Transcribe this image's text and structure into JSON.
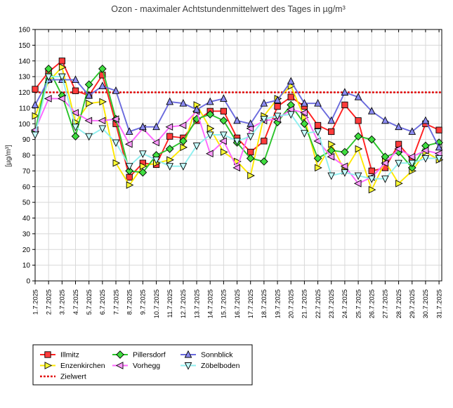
{
  "title": "Ozon -  maximaler Achtstundenmittelwert des Tages in µg/m³",
  "chart_data": {
    "type": "line",
    "title": "Ozon -  maximaler Achtstundenmittelwert des Tages in µg/m³",
    "xlabel": "",
    "ylabel": "[µg/m³]",
    "ylim": [
      0,
      160
    ],
    "ytick_step": 10,
    "grid": true,
    "legend_position": "bottom-left",
    "ytick_labels": [
      "0",
      "10",
      "20",
      "30",
      "40",
      "50",
      "60",
      "70",
      "80",
      "90",
      "100",
      "110",
      "120",
      "130",
      "140",
      "150",
      "160"
    ],
    "categories": [
      "1.7.2025",
      "2.7.2025",
      "3.7.2025",
      "4.7.2025",
      "5.7.2025",
      "6.7.2025",
      "7.7.2025",
      "8.7.2025",
      "9.7.2025",
      "10.7.2025",
      "11.7.2025",
      "12.7.2025",
      "13.7.2025",
      "14.7.2025",
      "15.7.2025",
      "16.7.2025",
      "17.7.2025",
      "18.7.2025",
      "19.7.2025",
      "20.7.2025",
      "21.7.2025",
      "22.7.2025",
      "23.7.2025",
      "24.7.2025",
      "25.7.2025",
      "26.7.2025",
      "27.7.2025",
      "28.7.2025",
      "29.7.2025",
      "30.7.2025",
      "31.7.2025"
    ],
    "target_line": {
      "name": "Zielwert",
      "value": 120,
      "color": "#e00000",
      "style": "dotted"
    },
    "series": [
      {
        "name": "Illmitz",
        "marker": "square",
        "color": "#ff2020",
        "fill": "#ff3b3b",
        "values": [
          122,
          133,
          140,
          121,
          118,
          131,
          100,
          66,
          75,
          74,
          92,
          91,
          102,
          108,
          108,
          91,
          82,
          89,
          111,
          117,
          111,
          99,
          95,
          112,
          102,
          70,
          72,
          87,
          77,
          100,
          96
        ]
      },
      {
        "name": "Enzenkirchen",
        "marker": "triangle-right",
        "color": "#ffe800",
        "fill": "#ffff33",
        "values": [
          105,
          127,
          136,
          101,
          113,
          114,
          75,
          61,
          73,
          75,
          77,
          85,
          112,
          97,
          82,
          76,
          67,
          105,
          116,
          124,
          104,
          72,
          87,
          70,
          84,
          58,
          76,
          62,
          70,
          82,
          77
        ]
      },
      {
        "name": "Pillersdorf",
        "marker": "diamond",
        "color": "#2bc42b",
        "fill": "#3fde3f",
        "values": [
          95,
          135,
          118,
          92,
          125,
          135,
          103,
          70,
          69,
          80,
          84,
          89,
          103,
          106,
          102,
          88,
          78,
          76,
          101,
          112,
          100,
          78,
          83,
          82,
          92,
          90,
          79,
          82,
          72,
          86,
          88
        ]
      },
      {
        "name": "Vorhegg",
        "marker": "triangle-left",
        "color": "#ff66ff",
        "fill": "#ff9bff",
        "values": [
          96,
          116,
          116,
          107,
          102,
          102,
          103,
          87,
          97,
          88,
          98,
          99,
          108,
          81,
          89,
          72,
          97,
          102,
          103,
          109,
          107,
          89,
          79,
          73,
          62,
          66,
          75,
          84,
          79,
          83,
          81
        ]
      },
      {
        "name": "Sonnblick",
        "marker": "triangle-up",
        "color": "#6a6add",
        "fill": "#8a8af0",
        "values": [
          112,
          128,
          128,
          128,
          118,
          124,
          121,
          95,
          98,
          98,
          114,
          113,
          109,
          114,
          116,
          102,
          100,
          113,
          115,
          127,
          113,
          113,
          102,
          120,
          117,
          108,
          102,
          98,
          95,
          102,
          85
        ]
      },
      {
        "name": "Zöbelboden",
        "marker": "triangle-down",
        "color": "#8fefef",
        "fill": "#c6ffff",
        "values": [
          93,
          130,
          130,
          98,
          92,
          97,
          88,
          73,
          81,
          77,
          73,
          73,
          86,
          93,
          93,
          89,
          92,
          103,
          105,
          106,
          94,
          95,
          67,
          69,
          67,
          65,
          65,
          75,
          75,
          78,
          78
        ]
      }
    ],
    "legend_order": [
      "Illmitz",
      "Pillersdorf",
      "Sonnblick",
      "Enzenkirchen",
      "Vorhegg",
      "Zöbelboden",
      "Zielwert"
    ]
  },
  "colors": {
    "grid": "#d8d8d8",
    "axis": "#000000",
    "title_text": "#3f3f3f",
    "background": "#ffffff",
    "target": "#e00000"
  }
}
